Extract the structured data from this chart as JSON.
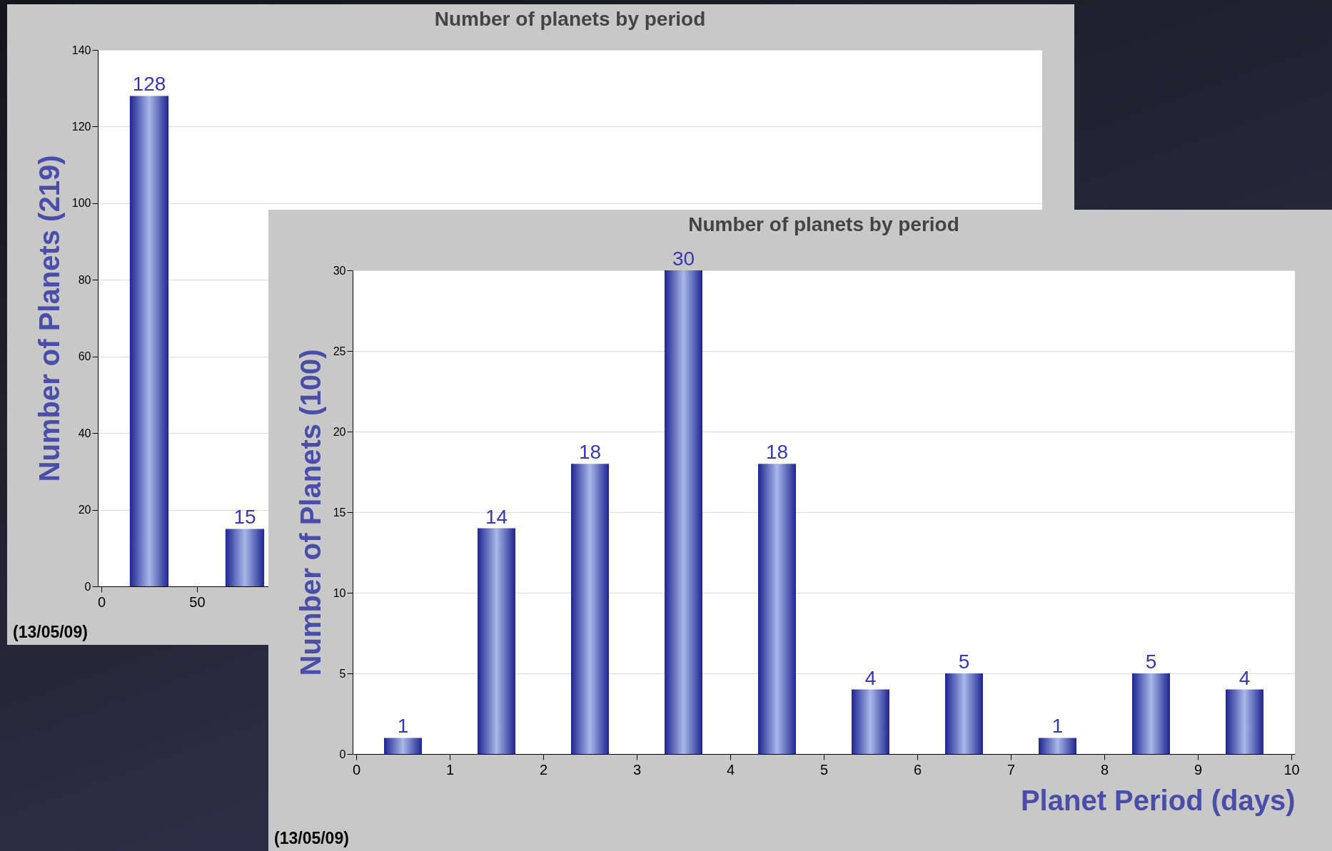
{
  "chart_data": [
    {
      "type": "bar",
      "title": "Number of planets by period",
      "ylabel": "Number of Planets (219)",
      "x": [
        25,
        75
      ],
      "values": [
        128,
        15
      ],
      "color": "#1e2590",
      "xlim": [
        0,
        490
      ],
      "xticks": [
        0,
        50
      ],
      "ylim": [
        0,
        140
      ],
      "yticks": [
        0,
        20,
        40,
        60,
        80,
        100,
        120,
        140
      ],
      "grid": "y",
      "data_labels": true,
      "annotations": [
        "(13/05/09)"
      ]
    },
    {
      "type": "bar",
      "title": "Number of planets by period",
      "xlabel": "Planet Period (days)",
      "ylabel": "Number of Planets (100)",
      "x": [
        0.5,
        1.5,
        2.5,
        3.5,
        4.5,
        5.5,
        6.5,
        7.5,
        8.5,
        9.5
      ],
      "values": [
        1,
        14,
        18,
        30,
        18,
        4,
        5,
        1,
        5,
        4
      ],
      "color": "#1e2590",
      "xlim": [
        0,
        10
      ],
      "xticks": [
        0,
        1,
        2,
        3,
        4,
        5,
        6,
        7,
        8,
        9,
        10
      ],
      "ylim": [
        0,
        30
      ],
      "yticks": [
        0,
        5,
        10,
        15,
        20,
        25,
        30
      ],
      "grid": "y",
      "data_labels": true,
      "annotations": [
        "(13/05/09)"
      ]
    }
  ]
}
